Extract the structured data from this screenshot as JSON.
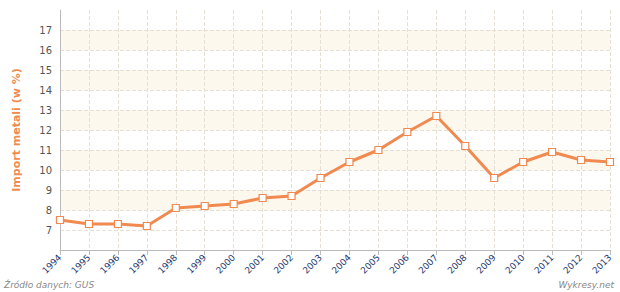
{
  "chart_data": {
    "type": "line",
    "y_label": "Import metali (w %)",
    "categories": [
      "1994",
      "1995",
      "1996",
      "1997",
      "1998",
      "1999",
      "2000",
      "2001",
      "2002",
      "2003",
      "2004",
      "2005",
      "2006",
      "2007",
      "2008",
      "2009",
      "2010",
      "2011",
      "2012",
      "2013"
    ],
    "values": [
      7.5,
      7.3,
      7.3,
      7.2,
      8.1,
      8.2,
      8.3,
      8.6,
      8.7,
      9.6,
      10.4,
      11.0,
      11.9,
      12.7,
      11.2,
      9.6,
      10.4,
      10.9,
      10.5,
      10.4
    ],
    "color": "#f08a50",
    "marker": "square",
    "line_style": "solid",
    "ylim": [
      6,
      18
    ],
    "yticks": [
      7,
      8,
      9,
      10,
      11,
      12,
      13,
      14,
      15,
      16,
      17
    ],
    "grid": true,
    "annotations": [
      "Źródło danych: GUS",
      "Wykresy.net",
      "wykresy.net"
    ]
  }
}
